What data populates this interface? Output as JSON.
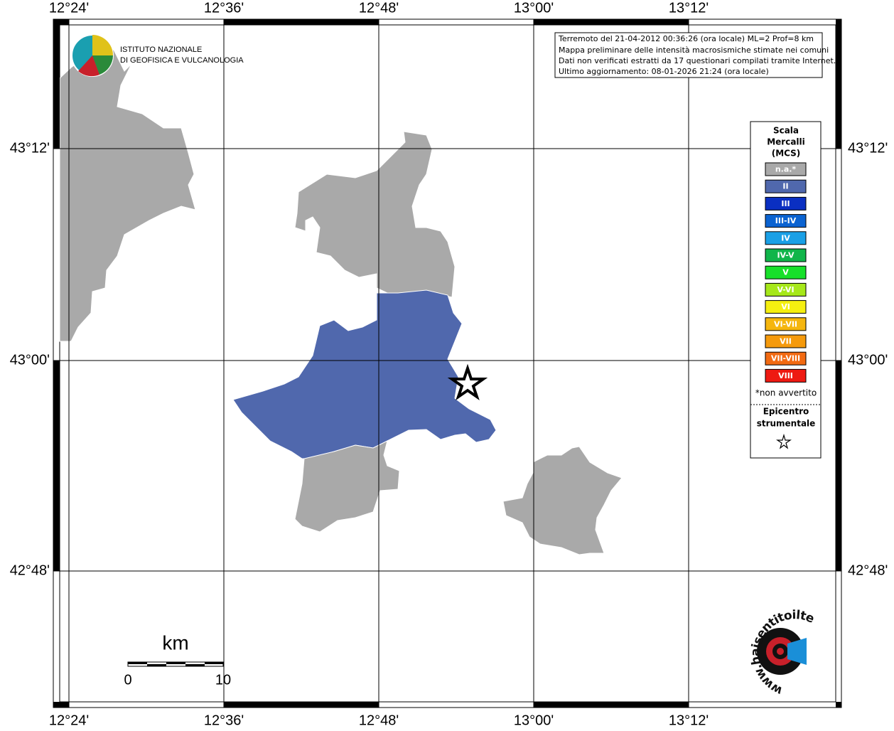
{
  "map": {
    "lon_labels": [
      "12°24'",
      "12°36'",
      "12°48'",
      "13°00'",
      "13°12'"
    ],
    "lat_labels": [
      "43°12'",
      "43°00'",
      "42°48'"
    ],
    "info": [
      "Terremoto del 21-04-2012 00:36:26 (ora locale) ML=2 Prof=8 km",
      "Mappa preliminare delle intensità macrosismiche stimate nei comuni",
      "Dati non verificati estratti da 17 questionari compilati tramite Internet.",
      "Ultimo aggiornamento: 08-01-2026 21:24 (ora locale)"
    ],
    "logo": {
      "line1": "ISTITUTO NAZIONALE",
      "line2": "DI GEOFISICA E VULCANOLOGIA"
    },
    "legend": {
      "title": [
        "Scala",
        "Mercalli",
        "(MCS)"
      ],
      "items": [
        {
          "label": "n.a.*",
          "color": "#a9a9a9"
        },
        {
          "label": "II",
          "color": "#5068ad"
        },
        {
          "label": "III",
          "color": "#0a2fc2"
        },
        {
          "label": "III-IV",
          "color": "#0b63d1"
        },
        {
          "label": "IV",
          "color": "#1aa0e6"
        },
        {
          "label": "IV-V",
          "color": "#10b54a"
        },
        {
          "label": "V",
          "color": "#17e02a"
        },
        {
          "label": "V-VI",
          "color": "#a6e81a"
        },
        {
          "label": "VI",
          "color": "#f5ef10"
        },
        {
          "label": "VI-VII",
          "color": "#f5b60e"
        },
        {
          "label": "VII",
          "color": "#f59a0c"
        },
        {
          "label": "VII-VIII",
          "color": "#f26a12"
        },
        {
          "label": "VIII",
          "color": "#ee1a12"
        }
      ],
      "note": "*non avvertito",
      "epicenter": [
        "Epicentro",
        "strumentale"
      ]
    },
    "scalebar": {
      "unit": "km",
      "ticks": [
        "0",
        "10"
      ]
    },
    "site_logo": "www.haisentitoilterremoto.it"
  }
}
